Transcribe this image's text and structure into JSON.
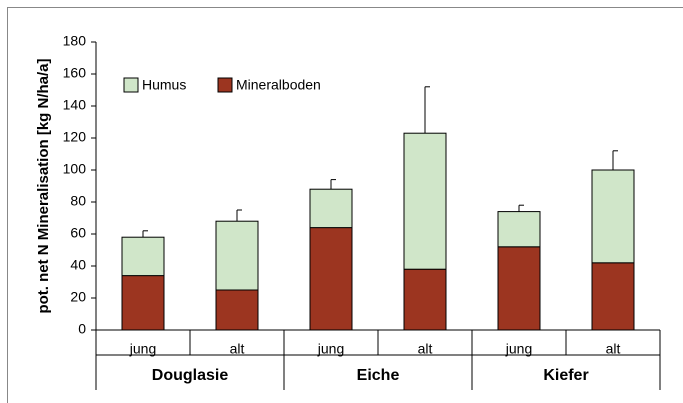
{
  "chart_data": {
    "type": "stacked_bar",
    "y_label": "pot. net N Mineralisation [kg N/ha/a]",
    "categories": [
      "jung",
      "alt",
      "jung",
      "alt",
      "jung",
      "alt"
    ],
    "groups": [
      "Douglasie",
      "Eiche",
      "Kiefer"
    ],
    "series": [
      {
        "name": "Mineralboden",
        "color": "#9c3520",
        "values": [
          34,
          25,
          64,
          38,
          52,
          42
        ]
      },
      {
        "name": "Humus",
        "color": "#d0e6c9",
        "values": [
          24,
          43,
          24,
          85,
          22,
          58
        ]
      }
    ],
    "errors": [
      4,
      7,
      6,
      29,
      4,
      12
    ],
    "ylim": [
      0,
      180
    ],
    "yticks": [
      0,
      20,
      40,
      60,
      80,
      100,
      120,
      140,
      160,
      180
    ]
  }
}
